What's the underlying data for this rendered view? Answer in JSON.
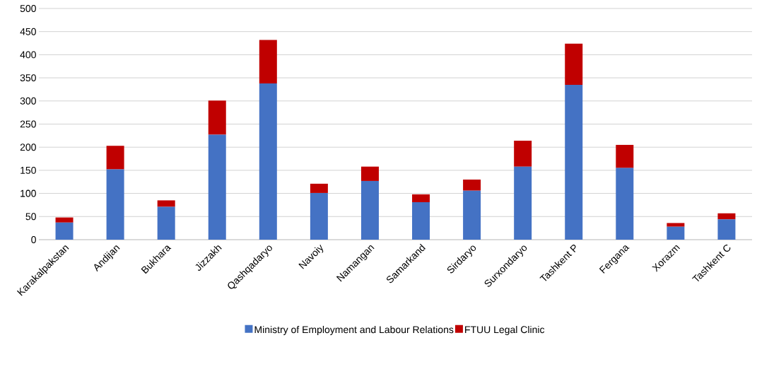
{
  "chart_data": {
    "type": "bar",
    "stacked": true,
    "categories": [
      "Karakalpakstan",
      "Andijan",
      "Bukhara",
      "Jizzakh",
      "Qashqadaryo",
      "Navoiy",
      "Namangan",
      "Samarkand",
      "Sirdaryo",
      "Surxondaryo",
      "Tashkent P",
      "Fergana",
      "Xorazm",
      "Tashkent C"
    ],
    "series": [
      {
        "name": "Ministry of Employment and Labour Relations",
        "color": "#4472c4",
        "values": [
          37,
          152,
          71,
          227,
          338,
          101,
          127,
          81,
          106,
          158,
          335,
          155,
          28,
          44
        ]
      },
      {
        "name": "FTUU Legal Clinic",
        "color": "#c00000",
        "values": [
          11,
          51,
          14,
          74,
          94,
          20,
          31,
          17,
          24,
          56,
          89,
          50,
          8,
          13
        ]
      }
    ],
    "ylim": [
      0,
      500
    ],
    "yticks": [
      0,
      50,
      100,
      150,
      200,
      250,
      300,
      350,
      400,
      450,
      500
    ],
    "grid": "y",
    "legend": "bottom"
  }
}
